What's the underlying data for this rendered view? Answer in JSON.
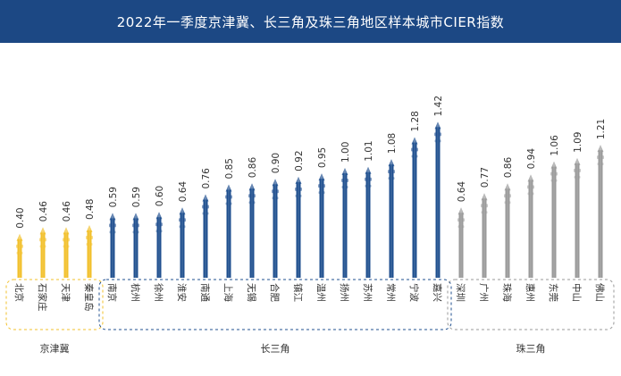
{
  "header": {
    "title": "2022年一季度京津冀、长三角及珠三角地区样本城市CIER指数"
  },
  "colors": {
    "header_bg": "#1c4884",
    "jjj": "#f2c02b",
    "csj": "#1f4f8f",
    "zsj": "#9a9a9a"
  },
  "chart_data": {
    "type": "bar",
    "title": "2022年一季度京津冀、长三角及珠三角地区样本城市CIER指数",
    "ylim": [
      0,
      1.5
    ],
    "categories": [
      "北京",
      "石家庄",
      "天津",
      "秦皇岛",
      "南京",
      "杭州",
      "徐州",
      "淮安",
      "南通",
      "上海",
      "无锡",
      "合肥",
      "镇江",
      "温州",
      "扬州",
      "苏州",
      "常州",
      "宁波",
      "嘉兴",
      "深圳",
      "广州",
      "珠海",
      "惠州",
      "东莞",
      "中山",
      "佛山"
    ],
    "values": [
      0.4,
      0.46,
      0.46,
      0.48,
      0.59,
      0.59,
      0.6,
      0.64,
      0.76,
      0.85,
      0.86,
      0.9,
      0.92,
      0.95,
      1.0,
      1.01,
      1.08,
      1.28,
      1.42,
      0.64,
      0.77,
      0.86,
      0.94,
      1.06,
      1.09,
      1.21
    ],
    "value_labels": [
      "0.40",
      "0.46",
      "0.46",
      "0.48",
      "0.59",
      "0.59",
      "0.60",
      "0.64",
      "0.76",
      "0.85",
      "0.86",
      "0.90",
      "0.92",
      "0.95",
      "1.00",
      "1.01",
      "1.08",
      "1.28",
      "1.42",
      "0.64",
      "0.77",
      "0.86",
      "0.94",
      "1.06",
      "1.09",
      "1.21"
    ],
    "groups": [
      {
        "name": "京津冀",
        "start": 0,
        "end": 3,
        "color": "#f2c02b"
      },
      {
        "name": "长三角",
        "start": 4,
        "end": 18,
        "color": "#1f4f8f"
      },
      {
        "name": "珠三角",
        "start": 19,
        "end": 25,
        "color": "#9a9a9a"
      }
    ]
  }
}
